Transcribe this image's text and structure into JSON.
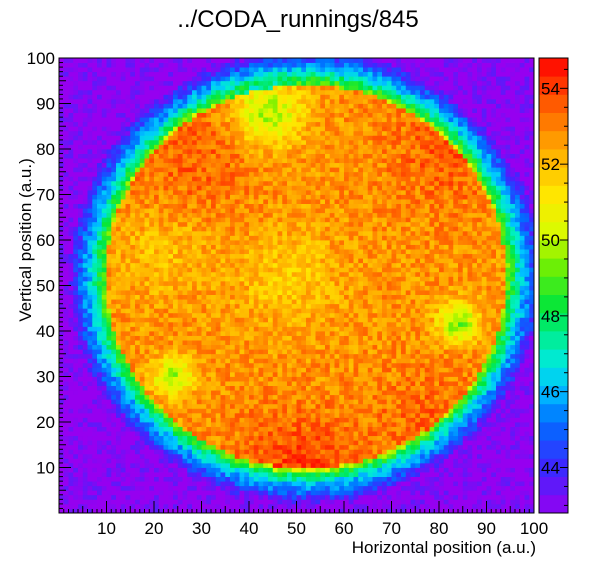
{
  "chart_data": {
    "type": "heatmap",
    "title": "../CODA_runnings/845",
    "xlabel": "Horizontal position (a.u.)",
    "ylabel": "Vertical position (a.u.)",
    "xlim": [
      0,
      100
    ],
    "ylim": [
      0,
      100
    ],
    "x_ticks": [
      10,
      20,
      30,
      40,
      50,
      60,
      70,
      80,
      90,
      100
    ],
    "y_ticks": [
      10,
      20,
      30,
      40,
      50,
      60,
      70,
      80,
      90,
      100
    ],
    "colorbar": {
      "min": 42.8,
      "max": 54.8,
      "ticks": [
        44,
        46,
        48,
        50,
        52,
        54
      ],
      "palette": "rainbow"
    },
    "bins": [
      100,
      100
    ],
    "description_of_pattern": "",
    "grid": false
  }
}
